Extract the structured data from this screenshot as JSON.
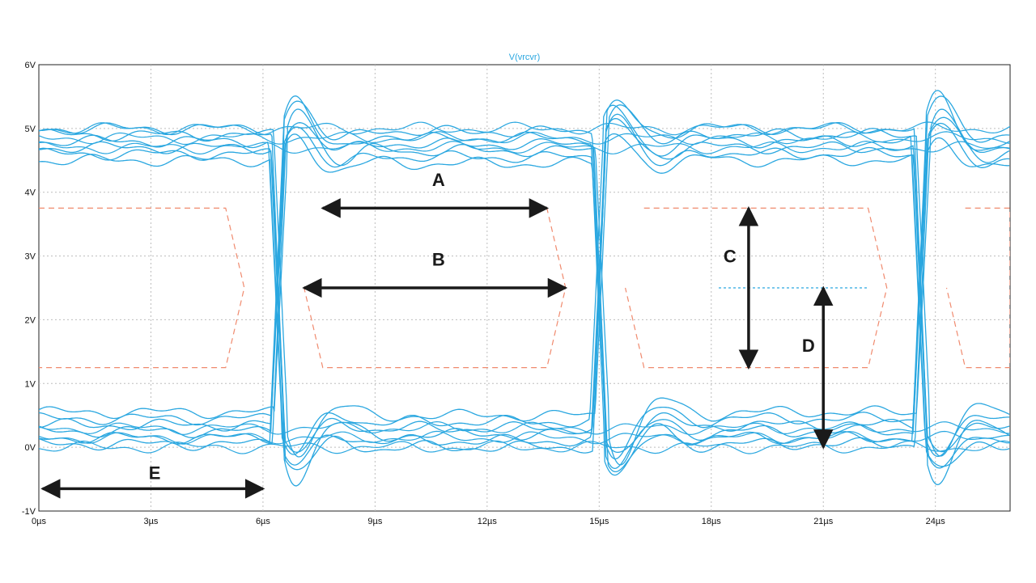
{
  "chart_data": {
    "type": "line",
    "title": "V(vrcvr)",
    "xlabel": "",
    "ylabel": "",
    "xlim": [
      0,
      26
    ],
    "ylim": [
      -1,
      6
    ],
    "x_ticks": [
      {
        "value": 0,
        "label": "0µs"
      },
      {
        "value": 3,
        "label": "3µs"
      },
      {
        "value": 6,
        "label": "6µs"
      },
      {
        "value": 9,
        "label": "9µs"
      },
      {
        "value": 12,
        "label": "12µs"
      },
      {
        "value": 15,
        "label": "15µs"
      },
      {
        "value": 18,
        "label": "18µs"
      },
      {
        "value": 21,
        "label": "21µs"
      },
      {
        "value": 24,
        "label": "24µs"
      }
    ],
    "y_ticks": [
      {
        "value": -1,
        "label": "-1V"
      },
      {
        "value": 0,
        "label": "0V"
      },
      {
        "value": 1,
        "label": "1V"
      },
      {
        "value": 2,
        "label": "2V"
      },
      {
        "value": 3,
        "label": "3V"
      },
      {
        "value": 4,
        "label": "4V"
      },
      {
        "value": 5,
        "label": "5V"
      },
      {
        "value": 6,
        "label": "6V"
      }
    ],
    "grid": true,
    "eye_traces": {
      "color": "#2aa7e0",
      "transition_centers": [
        6.4,
        15.0,
        23.6
      ],
      "high_levels": [
        5.0,
        4.95,
        4.9,
        4.85,
        4.8,
        4.75,
        4.7,
        4.65,
        4.6,
        4.55,
        4.5,
        4.45
      ],
      "low_levels": [
        0.0,
        0.05,
        0.1,
        0.15,
        0.2,
        0.25,
        0.3,
        0.35,
        0.4,
        0.45,
        0.5,
        0.55
      ],
      "overshoot_peak": 5.5,
      "undershoot_peak": -0.5
    },
    "eye_masks": {
      "color": "#f08a6e",
      "upper": 3.75,
      "lower": 1.25,
      "middle": 2.5,
      "polygons": [
        [
          [
            -1.0,
            3.75
          ],
          [
            5.0,
            3.75
          ],
          [
            5.5,
            2.5
          ],
          [
            5.0,
            1.25
          ],
          [
            -1.0,
            1.25
          ]
        ],
        [
          [
            7.6,
            3.75
          ],
          [
            13.6,
            3.75
          ],
          [
            14.1,
            2.5
          ],
          [
            13.6,
            1.25
          ],
          [
            7.6,
            1.25
          ],
          [
            7.1,
            2.5
          ]
        ],
        [
          [
            16.2,
            3.75
          ],
          [
            22.2,
            3.75
          ],
          [
            22.7,
            2.5
          ],
          [
            22.2,
            1.25
          ],
          [
            16.2,
            1.25
          ],
          [
            15.7,
            2.5
          ]
        ],
        [
          [
            24.8,
            3.75
          ],
          [
            27.0,
            3.75
          ],
          [
            27.0,
            1.25
          ],
          [
            24.8,
            1.25
          ],
          [
            24.3,
            2.5
          ]
        ]
      ]
    },
    "threshold_line": {
      "y": 2.5,
      "x_start": 18.2,
      "x_end": 22.2,
      "color": "#2aa7e0"
    },
    "annotations": [
      {
        "label": "A",
        "kind": "horizontal",
        "from": [
          7.6,
          3.75
        ],
        "to": [
          13.6,
          3.75
        ],
        "label_at": [
          10.7,
          4.2
        ]
      },
      {
        "label": "B",
        "kind": "horizontal",
        "from": [
          7.1,
          2.5
        ],
        "to": [
          14.1,
          2.5
        ],
        "label_at": [
          10.7,
          2.95
        ]
      },
      {
        "label": "C",
        "kind": "vertical",
        "from": [
          19.0,
          1.25
        ],
        "to": [
          19.0,
          3.75
        ],
        "label_at": [
          18.5,
          3.0
        ]
      },
      {
        "label": "D",
        "kind": "vertical",
        "from": [
          21.0,
          0.0
        ],
        "to": [
          21.0,
          2.5
        ],
        "label_at": [
          20.6,
          1.6
        ]
      },
      {
        "label": "E",
        "kind": "horizontal",
        "from": [
          0.1,
          -0.65
        ],
        "to": [
          6.0,
          -0.65
        ],
        "label_at": [
          3.1,
          -0.4
        ]
      }
    ]
  }
}
